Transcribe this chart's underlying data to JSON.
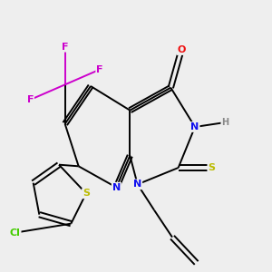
{
  "background_color": "#eeeeee",
  "bond_color": "#000000",
  "atom_colors": {
    "N": "#1010ee",
    "O": "#ee1010",
    "S": "#bbbb00",
    "F": "#cc00cc",
    "Cl": "#44cc00",
    "H": "#888888",
    "C": "#000000"
  },
  "figsize": [
    3.0,
    3.0
  ],
  "dpi": 100,
  "bond_lw": 1.4,
  "font_size": 8.0
}
